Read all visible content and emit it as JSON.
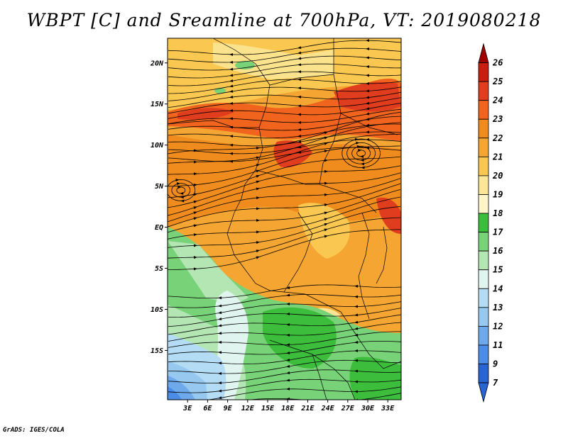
{
  "title": "WBPT [C] and Sreamline at 700hPa, VT: 2019080218",
  "credit": "GrADS: IGES/COLA",
  "map": {
    "lat_range": [
      -21,
      23
    ],
    "lon_range": [
      0,
      35
    ],
    "lat_ticks": [
      {
        "lat": 20,
        "label": "20N"
      },
      {
        "lat": 15,
        "label": "15N"
      },
      {
        "lat": 10,
        "label": "10N"
      },
      {
        "lat": 5,
        "label": "5N"
      },
      {
        "lat": 0,
        "label": "EQ"
      },
      {
        "lat": -5,
        "label": "5S"
      },
      {
        "lat": -10,
        "label": "10S"
      },
      {
        "lat": -15,
        "label": "15S"
      }
    ],
    "lon_ticks": [
      {
        "lon": 3,
        "label": "3E"
      },
      {
        "lon": 6,
        "label": "6E"
      },
      {
        "lon": 9,
        "label": "9E"
      },
      {
        "lon": 12,
        "label": "12E"
      },
      {
        "lon": 15,
        "label": "15E"
      },
      {
        "lon": 18,
        "label": "18E"
      },
      {
        "lon": 21,
        "label": "21E"
      },
      {
        "lon": 24,
        "label": "24E"
      },
      {
        "lon": 27,
        "label": "27E"
      },
      {
        "lon": 30,
        "label": "30E"
      },
      {
        "lon": 33,
        "label": "33E"
      }
    ]
  },
  "colorbar": {
    "levels": [
      {
        "label": "26",
        "color": "#a00000"
      },
      {
        "label": "25",
        "color": "#c81e10"
      },
      {
        "label": "24",
        "color": "#e03c1e"
      },
      {
        "label": "23",
        "color": "#f0641e"
      },
      {
        "label": "22",
        "color": "#f08c1e"
      },
      {
        "label": "21",
        "color": "#f5a532"
      },
      {
        "label": "20",
        "color": "#fac850"
      },
      {
        "label": "19",
        "color": "#fae696"
      },
      {
        "label": "18",
        "color": "#fff5c8"
      },
      {
        "label": "17",
        "color": "#3cbe3c"
      },
      {
        "label": "16",
        "color": "#78d278"
      },
      {
        "label": "15",
        "color": "#b4e6b4"
      },
      {
        "label": "14",
        "color": "#e1f5f0"
      },
      {
        "label": "13",
        "color": "#b4dcf5"
      },
      {
        "label": "12",
        "color": "#96c8f0"
      },
      {
        "label": "11",
        "color": "#6eaaeb"
      },
      {
        "label": "9",
        "color": "#4b8ce6"
      },
      {
        "label": "7",
        "color": "#2864d2"
      }
    ],
    "bottom_color": "#2864d2"
  }
}
